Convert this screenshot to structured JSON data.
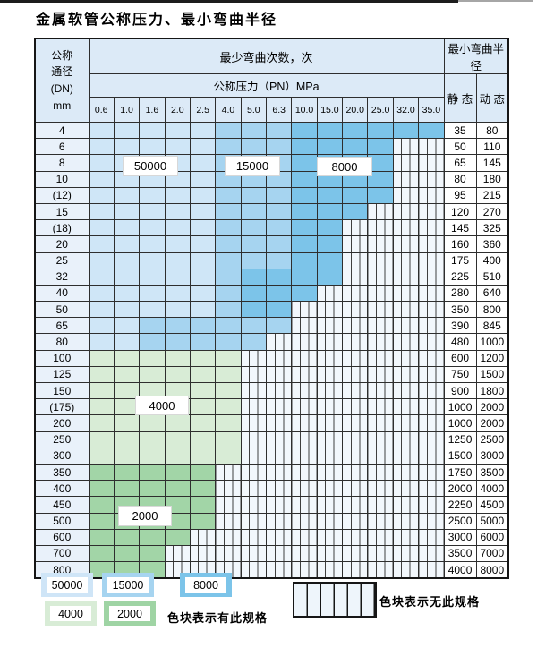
{
  "page": {
    "title": "金属软管公称压力、最小弯曲半径"
  },
  "table": {
    "header": {
      "dn_lines": [
        "公称",
        "通径",
        "(DN)",
        "mm"
      ],
      "bend_cycles": "最少弯曲次数，次",
      "pressure_title": "公称压力（PN）MPa",
      "pressures": [
        "0.6",
        "1.0",
        "1.6",
        "2.0",
        "2.5",
        "4.0",
        "5.0",
        "6.3",
        "10.0",
        "15.0",
        "20.0",
        "25.0",
        "32.0",
        "35.0"
      ],
      "min_radius": "最小弯曲半径",
      "static": "静 态",
      "dynamic": "动 态"
    },
    "cell_legend": {
      "b1": "50000次-浅蓝",
      "b2": "15000次-中蓝",
      "b3": "8000次-深蓝",
      "g1": "4000次-浅绿",
      "g2": "2000次-深绿",
      "x": "无此规格"
    },
    "rows": [
      {
        "dn": "4",
        "cells": [
          "b1",
          "b1",
          "b1",
          "b1",
          "b1",
          "b2",
          "b2",
          "b2",
          "b3",
          "b3",
          "b3",
          "b3",
          "b3",
          "b3"
        ],
        "static": "35",
        "dynamic": "80"
      },
      {
        "dn": "6",
        "cells": [
          "b1",
          "b1",
          "b1",
          "b1",
          "b1",
          "b2",
          "b2",
          "b2",
          "b3",
          "b3",
          "b3",
          "b3",
          "x",
          "x"
        ],
        "static": "50",
        "dynamic": "110"
      },
      {
        "dn": "8",
        "cells": [
          "b1",
          "b1",
          "b1",
          "b1",
          "b1",
          "b2",
          "b2",
          "b2",
          "b3",
          "b3",
          "b3",
          "b3",
          "x",
          "x"
        ],
        "static": "65",
        "dynamic": "145"
      },
      {
        "dn": "10",
        "cells": [
          "b1",
          "b1",
          "b1",
          "b1",
          "b1",
          "b2",
          "b2",
          "b2",
          "b3",
          "b3",
          "b3",
          "b3",
          "x",
          "x"
        ],
        "static": "80",
        "dynamic": "180"
      },
      {
        "dn": "(12)",
        "cells": [
          "b1",
          "b1",
          "b1",
          "b1",
          "b1",
          "b2",
          "b2",
          "b2",
          "b3",
          "b3",
          "b3",
          "b3",
          "x",
          "x"
        ],
        "static": "95",
        "dynamic": "215"
      },
      {
        "dn": "15",
        "cells": [
          "b1",
          "b1",
          "b1",
          "b1",
          "b1",
          "b2",
          "b2",
          "b2",
          "b3",
          "b3",
          "b3",
          "x",
          "x",
          "x"
        ],
        "static": "120",
        "dynamic": "270"
      },
      {
        "dn": "(18)",
        "cells": [
          "b1",
          "b1",
          "b1",
          "b1",
          "b1",
          "b2",
          "b2",
          "b2",
          "b3",
          "b3",
          "x",
          "x",
          "x",
          "x"
        ],
        "static": "145",
        "dynamic": "325"
      },
      {
        "dn": "20",
        "cells": [
          "b1",
          "b1",
          "b1",
          "b1",
          "b1",
          "b2",
          "b2",
          "b2",
          "b3",
          "b3",
          "x",
          "x",
          "x",
          "x"
        ],
        "static": "160",
        "dynamic": "360"
      },
      {
        "dn": "25",
        "cells": [
          "b1",
          "b1",
          "b1",
          "b1",
          "b1",
          "b2",
          "b2",
          "b2",
          "b3",
          "b3",
          "x",
          "x",
          "x",
          "x"
        ],
        "static": "175",
        "dynamic": "400"
      },
      {
        "dn": "32",
        "cells": [
          "b1",
          "b1",
          "b1",
          "b1",
          "b1",
          "b2",
          "b3",
          "b3",
          "b3",
          "b3",
          "x",
          "x",
          "x",
          "x"
        ],
        "static": "225",
        "dynamic": "510"
      },
      {
        "dn": "40",
        "cells": [
          "b1",
          "b1",
          "b1",
          "b1",
          "b1",
          "b2",
          "b3",
          "b3",
          "b3",
          "x",
          "x",
          "x",
          "x",
          "x"
        ],
        "static": "280",
        "dynamic": "640"
      },
      {
        "dn": "50",
        "cells": [
          "b1",
          "b1",
          "b1",
          "b1",
          "b1",
          "b2",
          "b3",
          "b3",
          "x",
          "x",
          "x",
          "x",
          "x",
          "x"
        ],
        "static": "350",
        "dynamic": "800"
      },
      {
        "dn": "65",
        "cells": [
          "b1",
          "b1",
          "b2",
          "b2",
          "b2",
          "b2",
          "b2",
          "b2",
          "x",
          "x",
          "x",
          "x",
          "x",
          "x"
        ],
        "static": "390",
        "dynamic": "845"
      },
      {
        "dn": "80",
        "cells": [
          "b1",
          "b1",
          "b2",
          "b2",
          "b2",
          "b2",
          "b2",
          "x",
          "x",
          "x",
          "x",
          "x",
          "x",
          "x"
        ],
        "static": "480",
        "dynamic": "1000"
      },
      {
        "dn": "100",
        "cells": [
          "g1",
          "g1",
          "g1",
          "g1",
          "g1",
          "g1",
          "x",
          "x",
          "x",
          "x",
          "x",
          "x",
          "x",
          "x"
        ],
        "static": "600",
        "dynamic": "1200"
      },
      {
        "dn": "125",
        "cells": [
          "g1",
          "g1",
          "g1",
          "g1",
          "g1",
          "g1",
          "x",
          "x",
          "x",
          "x",
          "x",
          "x",
          "x",
          "x"
        ],
        "static": "750",
        "dynamic": "1500"
      },
      {
        "dn": "150",
        "cells": [
          "g1",
          "g1",
          "g1",
          "g1",
          "g1",
          "g1",
          "x",
          "x",
          "x",
          "x",
          "x",
          "x",
          "x",
          "x"
        ],
        "static": "900",
        "dynamic": "1800"
      },
      {
        "dn": "(175)",
        "cells": [
          "g1",
          "g1",
          "g1",
          "g1",
          "g1",
          "g1",
          "x",
          "x",
          "x",
          "x",
          "x",
          "x",
          "x",
          "x"
        ],
        "static": "1000",
        "dynamic": "2000"
      },
      {
        "dn": "200",
        "cells": [
          "g1",
          "g1",
          "g1",
          "g1",
          "g1",
          "g1",
          "x",
          "x",
          "x",
          "x",
          "x",
          "x",
          "x",
          "x"
        ],
        "static": "1000",
        "dynamic": "2000"
      },
      {
        "dn": "250",
        "cells": [
          "g1",
          "g1",
          "g1",
          "g1",
          "g1",
          "g1",
          "x",
          "x",
          "x",
          "x",
          "x",
          "x",
          "x",
          "x"
        ],
        "static": "1250",
        "dynamic": "2500"
      },
      {
        "dn": "300",
        "cells": [
          "g1",
          "g1",
          "g1",
          "g1",
          "g1",
          "g1",
          "x",
          "x",
          "x",
          "x",
          "x",
          "x",
          "x",
          "x"
        ],
        "static": "1500",
        "dynamic": "3000"
      },
      {
        "dn": "350",
        "cells": [
          "g2",
          "g2",
          "g2",
          "g2",
          "g2",
          "x",
          "x",
          "x",
          "x",
          "x",
          "x",
          "x",
          "x",
          "x"
        ],
        "static": "1750",
        "dynamic": "3500"
      },
      {
        "dn": "400",
        "cells": [
          "g2",
          "g2",
          "g2",
          "g2",
          "g2",
          "x",
          "x",
          "x",
          "x",
          "x",
          "x",
          "x",
          "x",
          "x"
        ],
        "static": "2000",
        "dynamic": "4000"
      },
      {
        "dn": "450",
        "cells": [
          "g2",
          "g2",
          "g2",
          "g2",
          "g2",
          "x",
          "x",
          "x",
          "x",
          "x",
          "x",
          "x",
          "x",
          "x"
        ],
        "static": "2250",
        "dynamic": "4500"
      },
      {
        "dn": "500",
        "cells": [
          "g2",
          "g2",
          "g2",
          "g2",
          "g2",
          "x",
          "x",
          "x",
          "x",
          "x",
          "x",
          "x",
          "x",
          "x"
        ],
        "static": "2500",
        "dynamic": "5000"
      },
      {
        "dn": "600",
        "cells": [
          "g2",
          "g2",
          "g2",
          "g2",
          "x",
          "x",
          "x",
          "x",
          "x",
          "x",
          "x",
          "x",
          "x",
          "x"
        ],
        "static": "3000",
        "dynamic": "6000"
      },
      {
        "dn": "700",
        "cells": [
          "g2",
          "g2",
          "g2",
          "x",
          "x",
          "x",
          "x",
          "x",
          "x",
          "x",
          "x",
          "x",
          "x",
          "x"
        ],
        "static": "3500",
        "dynamic": "7000"
      },
      {
        "dn": "800",
        "cells": [
          "g2",
          "g2",
          "g2",
          "x",
          "x",
          "x",
          "x",
          "x",
          "x",
          "x",
          "x",
          "x",
          "x",
          "x"
        ],
        "static": "4000",
        "dynamic": "8000"
      }
    ],
    "region_labels": [
      {
        "text": "50000"
      },
      {
        "text": "15000"
      },
      {
        "text": "8000"
      },
      {
        "text": "4000"
      },
      {
        "text": "2000"
      }
    ]
  },
  "legend": {
    "swatches": [
      {
        "text": "50000",
        "color": "#cfe5f7"
      },
      {
        "text": "15000",
        "color": "#a6d4f0"
      },
      {
        "text": "8000",
        "color": "#7cc4e9"
      },
      {
        "text": "4000",
        "color": "#d8ecd6"
      },
      {
        "text": "2000",
        "color": "#9fd4a4"
      }
    ],
    "available_label": "色块表示有此规格",
    "unavailable_label": "色块表示无此规格"
  },
  "colors": {
    "cycles_50000": "#cfe6f7",
    "cycles_15000": "#a6d4f0",
    "cycles_8000": "#7cc4e9",
    "cycles_4000": "#d8ecd6",
    "cycles_2000": "#a2d5a7",
    "header_bg": "#dceaf7",
    "no_spec_bg": "#f2f7fc"
  }
}
